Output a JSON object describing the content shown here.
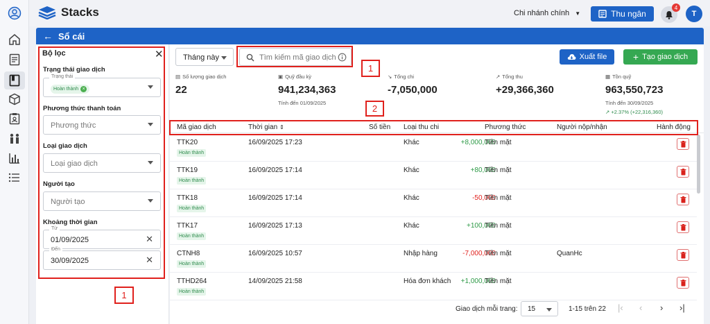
{
  "app": {
    "brand": "Stacks",
    "branch": "Chi nhánh chính",
    "cashier_label": "Thu ngân",
    "notification_count": "4",
    "avatar_initial": "T"
  },
  "nav": [
    "user-circle-icon",
    "home-icon",
    "document-list-icon",
    "ledger-book-icon",
    "box-icon",
    "clipboard-icon",
    "people-icon",
    "bar-chart-icon",
    "list-icon"
  ],
  "page": {
    "title": "Sổ cái"
  },
  "filter": {
    "title": "Bộ lọc",
    "status_label": "Trạng thái giao dịch",
    "status_legend": "Trạng thái",
    "status_chip": "Hoàn thành",
    "method_label": "Phương thức thanh toán",
    "method_placeholder": "Phương thức",
    "type_label": "Loại giao dịch",
    "type_placeholder": "Loại giao dịch",
    "creator_label": "Người tạo",
    "creator_placeholder": "Người tạo",
    "range_label": "Khoảng thời gian",
    "from_legend": "Từ",
    "from_value": "01/09/2025",
    "to_legend": "Đến",
    "to_value": "30/09/2025"
  },
  "toolbar": {
    "period": "Tháng này",
    "search_placeholder": "Tìm kiếm mã giao dịch",
    "export_label": "Xuất file",
    "create_label": "Tạo giao dịch"
  },
  "stats": [
    {
      "label": "Số lượng giao dịch",
      "value": "22",
      "sub": ""
    },
    {
      "label": "Quỹ đầu kỳ",
      "value": "941,234,363",
      "sub": "Tính đến 01/09/2025"
    },
    {
      "label": "Tổng chi",
      "value": "-7,050,000",
      "sub": ""
    },
    {
      "label": "Tổng thu",
      "value": "+29,366,360",
      "sub": ""
    },
    {
      "label": "Tồn quỹ",
      "value": "963,550,723",
      "sub": "Tính đến 30/09/2025",
      "trend": "+2.37% (+22,316,360)"
    }
  ],
  "table": {
    "headers": {
      "code": "Mã giao dịch",
      "time": "Thời gian",
      "amount": "Số tiền",
      "category": "Loại thu chi",
      "method": "Phương thức",
      "person": "Người nộp/nhận",
      "action": "Hành động"
    },
    "rows": [
      {
        "code": "TTK20",
        "status": "Hoàn thành",
        "time": "16/09/2025 17:23",
        "amount": "+8,000,000",
        "sign": "pos",
        "category": "Khác",
        "method": "Tiền mặt",
        "person": ""
      },
      {
        "code": "TTK19",
        "status": "Hoàn thành",
        "time": "16/09/2025 17:14",
        "amount": "+80,000",
        "sign": "pos",
        "category": "Khác",
        "method": "Tiền mặt",
        "person": ""
      },
      {
        "code": "TTK18",
        "status": "Hoàn thành",
        "time": "16/09/2025 17:14",
        "amount": "-50,000",
        "sign": "neg",
        "category": "Khác",
        "method": "Tiền mặt",
        "person": ""
      },
      {
        "code": "TTK17",
        "status": "Hoàn thành",
        "time": "16/09/2025 17:13",
        "amount": "+100,000",
        "sign": "pos",
        "category": "Khác",
        "method": "Tiền mặt",
        "person": ""
      },
      {
        "code": "CTNH8",
        "status": "Hoàn thành",
        "time": "16/09/2025 10:57",
        "amount": "-7,000,000",
        "sign": "neg",
        "category": "Nhập hàng",
        "method": "Tiền mặt",
        "person": "QuanHc"
      },
      {
        "code": "TTHD264",
        "status": "Hoàn thành",
        "time": "14/09/2025 21:58",
        "amount": "+1,000,000",
        "sign": "pos",
        "category": "Hóa đơn khách",
        "method": "Tiền mặt",
        "person": ""
      }
    ]
  },
  "pagination": {
    "per_page_label": "Giao dịch mỗi trang:",
    "per_page": "15",
    "range": "1-15 trên 22"
  },
  "annotations": {
    "filter_marker": "1",
    "search_marker": "1",
    "header_marker": "2"
  },
  "colors": {
    "primary": "#1e63c6",
    "success": "#35a852",
    "danger": "#e0201c"
  }
}
